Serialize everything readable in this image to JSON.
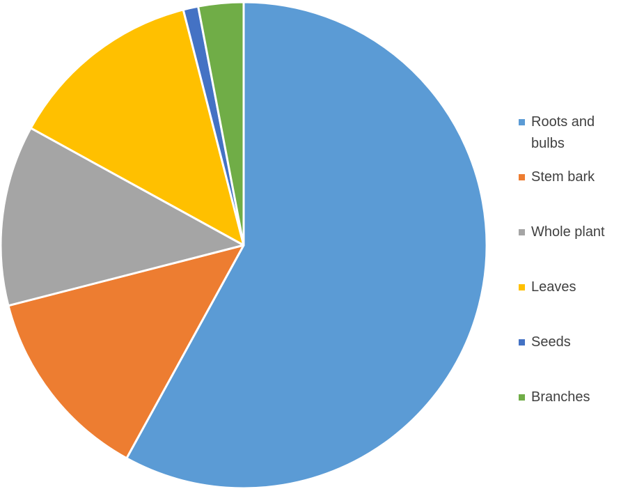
{
  "chart_data": {
    "type": "pie",
    "categories": [
      "Roots and bulbs",
      "Stem bark",
      "Whole plant",
      "Leaves",
      "Seeds",
      "Branches"
    ],
    "values": [
      58,
      13,
      12,
      13,
      1,
      3
    ],
    "colors": [
      "#5b9bd5",
      "#ed7d31",
      "#a5a5a5",
      "#ffc000",
      "#4472c4",
      "#70ad47"
    ],
    "legend": "right"
  }
}
